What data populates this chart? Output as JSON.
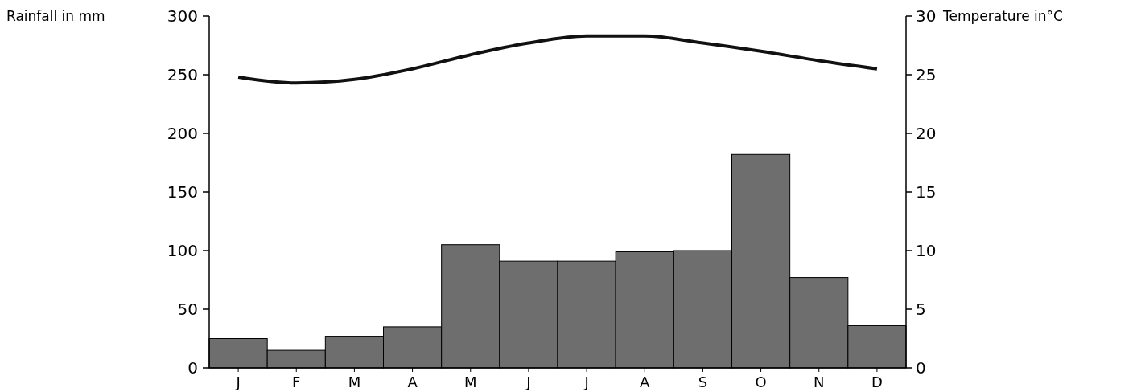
{
  "chart_data": {
    "type": "bar",
    "ylabel": "Rainfall in mm",
    "y2label": "Temperature in°C",
    "categories": [
      "J",
      "F",
      "M",
      "A",
      "M",
      "J",
      "J",
      "A",
      "S",
      "O",
      "N",
      "D"
    ],
    "series": [
      {
        "color": "#6e6e6e",
        "values": [
          25,
          15,
          27,
          35,
          105,
          91,
          91,
          99,
          100,
          182,
          77,
          36
        ]
      },
      {
        "type": "line",
        "axis": "y2",
        "color": "#111111",
        "values": [
          24.8,
          24.3,
          24.6,
          25.5,
          26.7,
          27.7,
          28.3,
          28.3,
          27.7,
          27,
          26.2,
          25.5
        ]
      }
    ],
    "ylim": [
      0,
      300
    ],
    "yticks": [
      0,
      50,
      100,
      150,
      200,
      250,
      300
    ],
    "y2lim": [
      0,
      30
    ],
    "y2ticks": [
      0,
      5,
      10,
      15,
      20,
      25,
      30
    ],
    "marker": "none",
    "line_style": "solid",
    "grid": false
  }
}
